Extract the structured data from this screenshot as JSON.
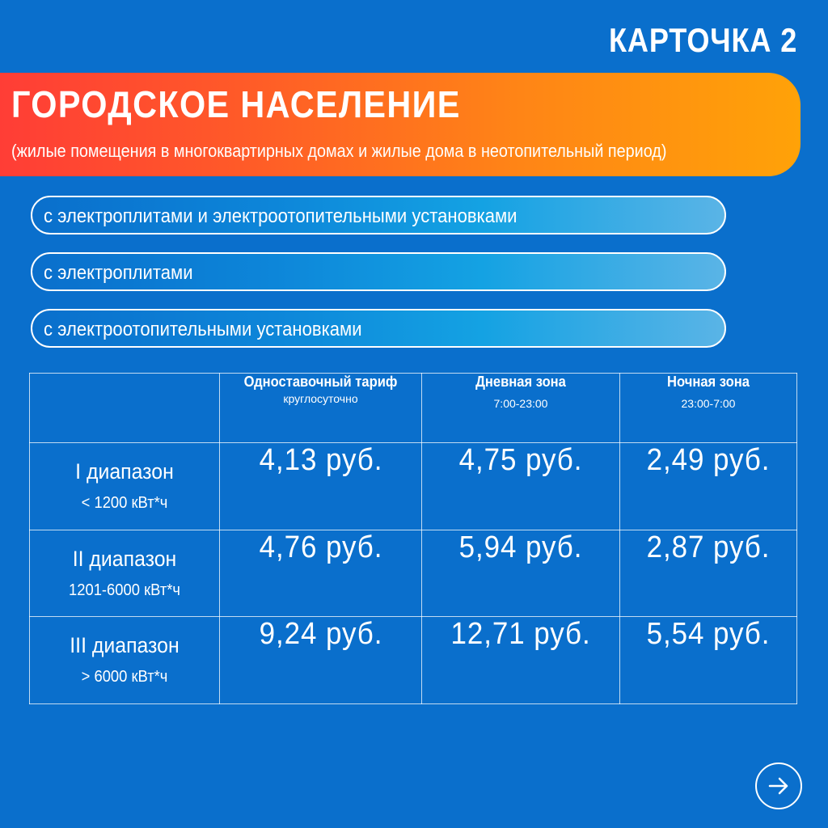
{
  "card_label": "КАРТОЧКА 2",
  "banner": {
    "title": "ГОРОДСКОЕ НАСЕЛЕНИЕ",
    "subtitle": "(жилые помещения в многоквартирных домах и жилые дома в неотопительный период)"
  },
  "categories": [
    "с электроплитами и электроотопительными установками",
    "с электроплитами",
    "с электроотопительными установками"
  ],
  "table": {
    "headers": [
      {
        "title": "Одноставочный тариф",
        "sub": "круглосуточно"
      },
      {
        "title": "Дневная зона",
        "sub": "7:00-23:00"
      },
      {
        "title": "Ночная зона",
        "sub": "23:00-7:00"
      }
    ],
    "rows": [
      {
        "name": "I диапазон",
        "limit": "< 1200 кВт*ч",
        "single": "4,13 руб.",
        "day": "4,75 руб.",
        "night": "2,49 руб."
      },
      {
        "name": "II диапазон",
        "limit": "1201-6000 кВт*ч",
        "single": "4,76 руб.",
        "day": "5,94 руб.",
        "night": "2,87 руб."
      },
      {
        "name": "III диапазон",
        "limit": "> 6000 кВт*ч",
        "single": "9,24 руб.",
        "day": "12,71 руб.",
        "night": "5,54 руб."
      }
    ]
  },
  "next_icon": "arrow-right-icon",
  "colors": {
    "background": "#0a6fcc",
    "banner_start": "#ff3d36",
    "banner_end": "#ffa208",
    "text": "#ffffff"
  }
}
